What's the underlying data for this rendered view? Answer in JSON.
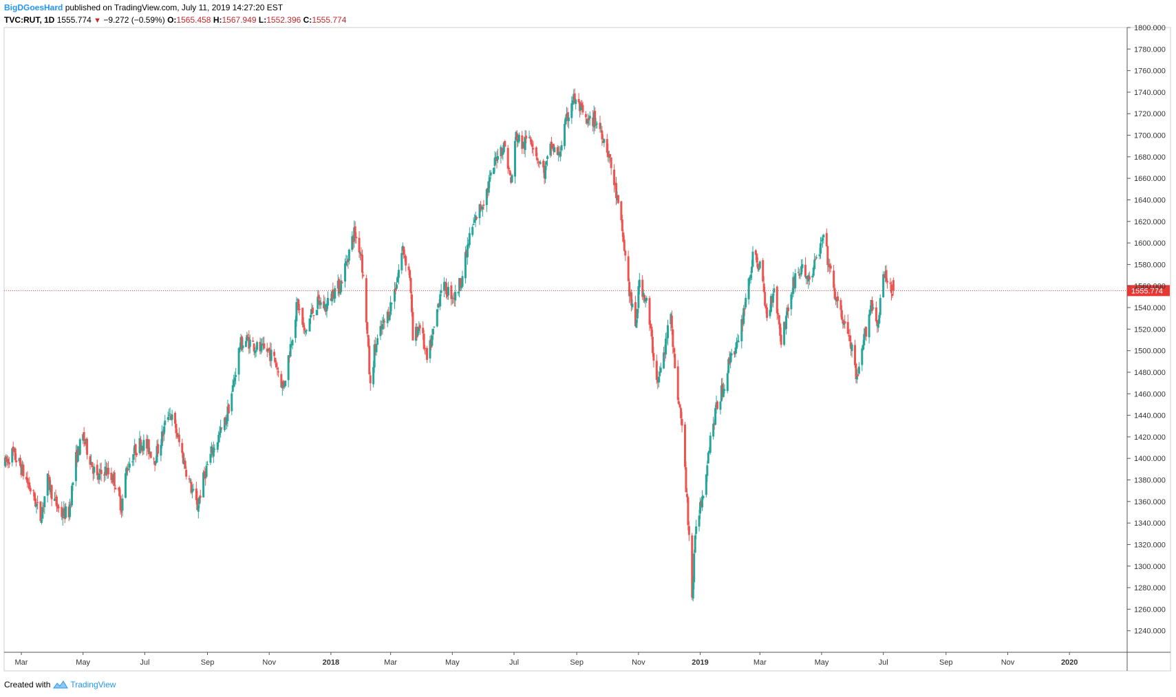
{
  "header": {
    "author": "BigDGoesHard",
    "published_text": "published on TradingView.com, July 11, 2019 14:27:20 EST",
    "symbol": "TVC:RUT, 1D",
    "last": "1555.774",
    "change": "−9.272 (−0.59%)",
    "o_label": "O:",
    "o_value": "1565.458",
    "h_label": "H:",
    "h_value": "1567.949",
    "l_label": "L:",
    "l_value": "1552.396",
    "c_label": "C:",
    "c_value": "1555.774"
  },
  "footer": {
    "created_with": "Created with",
    "brand": "TradingView",
    "logo_icon": "tradingview-logo-icon"
  },
  "colors": {
    "up": "#26a69a",
    "down": "#ef5350",
    "price_line": "#e53935",
    "axis": "#000000"
  },
  "chart_data": {
    "type": "candlestick",
    "symbol": "TVC:RUT",
    "interval": "1D",
    "current_price": 1555.774,
    "current_price_label": "1555.774",
    "ylim": [
      1220,
      1800
    ],
    "y_ticks": [
      "1800.000",
      "1780.000",
      "1760.000",
      "1740.000",
      "1720.000",
      "1700.000",
      "1680.000",
      "1660.000",
      "1640.000",
      "1620.000",
      "1600.000",
      "1580.000",
      "1560.000",
      "1540.000",
      "1520.000",
      "1500.000",
      "1480.000",
      "1460.000",
      "1440.000",
      "1420.000",
      "1400.000",
      "1380.000",
      "1360.000",
      "1340.000",
      "1320.000",
      "1300.000",
      "1280.000",
      "1260.000",
      "1240.000"
    ],
    "x_ticks": [
      {
        "label": "Mar",
        "date": "2017-03-01",
        "bold": false
      },
      {
        "label": "May",
        "date": "2017-05-01",
        "bold": false
      },
      {
        "label": "Jul",
        "date": "2017-07-01",
        "bold": false
      },
      {
        "label": "Sep",
        "date": "2017-09-01",
        "bold": false
      },
      {
        "label": "Nov",
        "date": "2017-11-01",
        "bold": false
      },
      {
        "label": "2018",
        "date": "2018-01-01",
        "bold": true
      },
      {
        "label": "Mar",
        "date": "2018-03-01",
        "bold": false
      },
      {
        "label": "May",
        "date": "2018-05-01",
        "bold": false
      },
      {
        "label": "Jul",
        "date": "2018-07-01",
        "bold": false
      },
      {
        "label": "Sep",
        "date": "2018-09-01",
        "bold": false
      },
      {
        "label": "Nov",
        "date": "2018-11-01",
        "bold": false
      },
      {
        "label": "2019",
        "date": "2019-01-01",
        "bold": true
      },
      {
        "label": "Mar",
        "date": "2019-03-01",
        "bold": false
      },
      {
        "label": "May",
        "date": "2019-05-01",
        "bold": false
      },
      {
        "label": "Jul",
        "date": "2019-07-01",
        "bold": false
      },
      {
        "label": "Sep",
        "date": "2019-09-01",
        "bold": false
      },
      {
        "label": "Nov",
        "date": "2019-11-01",
        "bold": false
      },
      {
        "label": "2020",
        "date": "2020-01-01",
        "bold": true
      }
    ],
    "x_range": [
      "2017-02-12",
      "2020-02-27"
    ],
    "close_path": [
      {
        "date": "2017-02-13",
        "close": 1395
      },
      {
        "date": "2017-02-20",
        "close": 1405
      },
      {
        "date": "2017-02-27",
        "close": 1395
      },
      {
        "date": "2017-03-06",
        "close": 1380
      },
      {
        "date": "2017-03-13",
        "close": 1365
      },
      {
        "date": "2017-03-20",
        "close": 1345
      },
      {
        "date": "2017-03-27",
        "close": 1380
      },
      {
        "date": "2017-04-03",
        "close": 1360
      },
      {
        "date": "2017-04-10",
        "close": 1348
      },
      {
        "date": "2017-04-17",
        "close": 1350
      },
      {
        "date": "2017-04-24",
        "close": 1400
      },
      {
        "date": "2017-05-01",
        "close": 1420
      },
      {
        "date": "2017-05-08",
        "close": 1400
      },
      {
        "date": "2017-05-15",
        "close": 1380
      },
      {
        "date": "2017-05-22",
        "close": 1390
      },
      {
        "date": "2017-06-01",
        "close": 1380
      },
      {
        "date": "2017-06-08",
        "close": 1355
      },
      {
        "date": "2017-06-13",
        "close": 1390
      },
      {
        "date": "2017-06-20",
        "close": 1405
      },
      {
        "date": "2017-06-27",
        "close": 1415
      },
      {
        "date": "2017-07-04",
        "close": 1410
      },
      {
        "date": "2017-07-11",
        "close": 1400
      },
      {
        "date": "2017-07-18",
        "close": 1420
      },
      {
        "date": "2017-07-25",
        "close": 1445
      },
      {
        "date": "2017-08-01",
        "close": 1425
      },
      {
        "date": "2017-08-08",
        "close": 1400
      },
      {
        "date": "2017-08-15",
        "close": 1375
      },
      {
        "date": "2017-08-22",
        "close": 1355
      },
      {
        "date": "2017-08-29",
        "close": 1385
      },
      {
        "date": "2017-09-05",
        "close": 1405
      },
      {
        "date": "2017-09-12",
        "close": 1420
      },
      {
        "date": "2017-09-19",
        "close": 1435
      },
      {
        "date": "2017-09-26",
        "close": 1465
      },
      {
        "date": "2017-10-03",
        "close": 1505
      },
      {
        "date": "2017-10-10",
        "close": 1510
      },
      {
        "date": "2017-10-17",
        "close": 1505
      },
      {
        "date": "2017-10-24",
        "close": 1500
      },
      {
        "date": "2017-10-31",
        "close": 1500
      },
      {
        "date": "2017-11-07",
        "close": 1490
      },
      {
        "date": "2017-11-15",
        "close": 1465
      },
      {
        "date": "2017-11-22",
        "close": 1505
      },
      {
        "date": "2017-11-29",
        "close": 1545
      },
      {
        "date": "2017-12-06",
        "close": 1515
      },
      {
        "date": "2017-12-13",
        "close": 1535
      },
      {
        "date": "2017-12-20",
        "close": 1545
      },
      {
        "date": "2017-12-27",
        "close": 1540
      },
      {
        "date": "2018-01-03",
        "close": 1555
      },
      {
        "date": "2018-01-10",
        "close": 1560
      },
      {
        "date": "2018-01-17",
        "close": 1585
      },
      {
        "date": "2018-01-24",
        "close": 1610
      },
      {
        "date": "2018-01-31",
        "close": 1590
      },
      {
        "date": "2018-02-05",
        "close": 1530
      },
      {
        "date": "2018-02-09",
        "close": 1465
      },
      {
        "date": "2018-02-13",
        "close": 1500
      },
      {
        "date": "2018-02-20",
        "close": 1520
      },
      {
        "date": "2018-02-27",
        "close": 1535
      },
      {
        "date": "2018-03-06",
        "close": 1560
      },
      {
        "date": "2018-03-13",
        "close": 1595
      },
      {
        "date": "2018-03-20",
        "close": 1570
      },
      {
        "date": "2018-03-23",
        "close": 1510
      },
      {
        "date": "2018-03-30",
        "close": 1525
      },
      {
        "date": "2018-04-06",
        "close": 1490
      },
      {
        "date": "2018-04-13",
        "close": 1520
      },
      {
        "date": "2018-04-20",
        "close": 1560
      },
      {
        "date": "2018-04-27",
        "close": 1555
      },
      {
        "date": "2018-05-04",
        "close": 1550
      },
      {
        "date": "2018-05-11",
        "close": 1570
      },
      {
        "date": "2018-05-18",
        "close": 1605
      },
      {
        "date": "2018-05-25",
        "close": 1625
      },
      {
        "date": "2018-06-01",
        "close": 1640
      },
      {
        "date": "2018-06-08",
        "close": 1660
      },
      {
        "date": "2018-06-15",
        "close": 1685
      },
      {
        "date": "2018-06-22",
        "close": 1690
      },
      {
        "date": "2018-06-28",
        "close": 1655
      },
      {
        "date": "2018-07-03",
        "close": 1700
      },
      {
        "date": "2018-07-10",
        "close": 1690
      },
      {
        "date": "2018-07-17",
        "close": 1700
      },
      {
        "date": "2018-07-24",
        "close": 1680
      },
      {
        "date": "2018-07-31",
        "close": 1665
      },
      {
        "date": "2018-08-07",
        "close": 1690
      },
      {
        "date": "2018-08-14",
        "close": 1680
      },
      {
        "date": "2018-08-21",
        "close": 1710
      },
      {
        "date": "2018-08-28",
        "close": 1735
      },
      {
        "date": "2018-09-04",
        "close": 1725
      },
      {
        "date": "2018-09-11",
        "close": 1710
      },
      {
        "date": "2018-09-18",
        "close": 1715
      },
      {
        "date": "2018-09-25",
        "close": 1705
      },
      {
        "date": "2018-10-02",
        "close": 1685
      },
      {
        "date": "2018-10-09",
        "close": 1650
      },
      {
        "date": "2018-10-16",
        "close": 1610
      },
      {
        "date": "2018-10-23",
        "close": 1555
      },
      {
        "date": "2018-10-29",
        "close": 1520
      },
      {
        "date": "2018-11-02",
        "close": 1565
      },
      {
        "date": "2018-11-09",
        "close": 1545
      },
      {
        "date": "2018-11-16",
        "close": 1495
      },
      {
        "date": "2018-11-20",
        "close": 1470
      },
      {
        "date": "2018-11-27",
        "close": 1500
      },
      {
        "date": "2018-12-03",
        "close": 1540
      },
      {
        "date": "2018-12-07",
        "close": 1480
      },
      {
        "date": "2018-12-14",
        "close": 1430
      },
      {
        "date": "2018-12-21",
        "close": 1330
      },
      {
        "date": "2018-12-24",
        "close": 1270
      },
      {
        "date": "2018-12-28",
        "close": 1340
      },
      {
        "date": "2019-01-04",
        "close": 1370
      },
      {
        "date": "2019-01-11",
        "close": 1420
      },
      {
        "date": "2019-01-18",
        "close": 1450
      },
      {
        "date": "2019-01-25",
        "close": 1470
      },
      {
        "date": "2019-02-01",
        "close": 1500
      },
      {
        "date": "2019-02-08",
        "close": 1505
      },
      {
        "date": "2019-02-15",
        "close": 1550
      },
      {
        "date": "2019-02-22",
        "close": 1585
      },
      {
        "date": "2019-03-01",
        "close": 1580
      },
      {
        "date": "2019-03-08",
        "close": 1530
      },
      {
        "date": "2019-03-15",
        "close": 1560
      },
      {
        "date": "2019-03-22",
        "close": 1510
      },
      {
        "date": "2019-03-29",
        "close": 1540
      },
      {
        "date": "2019-04-05",
        "close": 1570
      },
      {
        "date": "2019-04-12",
        "close": 1575
      },
      {
        "date": "2019-04-19",
        "close": 1565
      },
      {
        "date": "2019-04-26",
        "close": 1585
      },
      {
        "date": "2019-05-03",
        "close": 1605
      },
      {
        "date": "2019-05-10",
        "close": 1570
      },
      {
        "date": "2019-05-17",
        "close": 1540
      },
      {
        "date": "2019-05-24",
        "close": 1525
      },
      {
        "date": "2019-05-31",
        "close": 1500
      },
      {
        "date": "2019-06-05",
        "close": 1470
      },
      {
        "date": "2019-06-12",
        "close": 1510
      },
      {
        "date": "2019-06-19",
        "close": 1545
      },
      {
        "date": "2019-06-26",
        "close": 1525
      },
      {
        "date": "2019-07-01",
        "close": 1570
      },
      {
        "date": "2019-07-05",
        "close": 1565
      },
      {
        "date": "2019-07-11",
        "close": 1555.774
      }
    ]
  }
}
